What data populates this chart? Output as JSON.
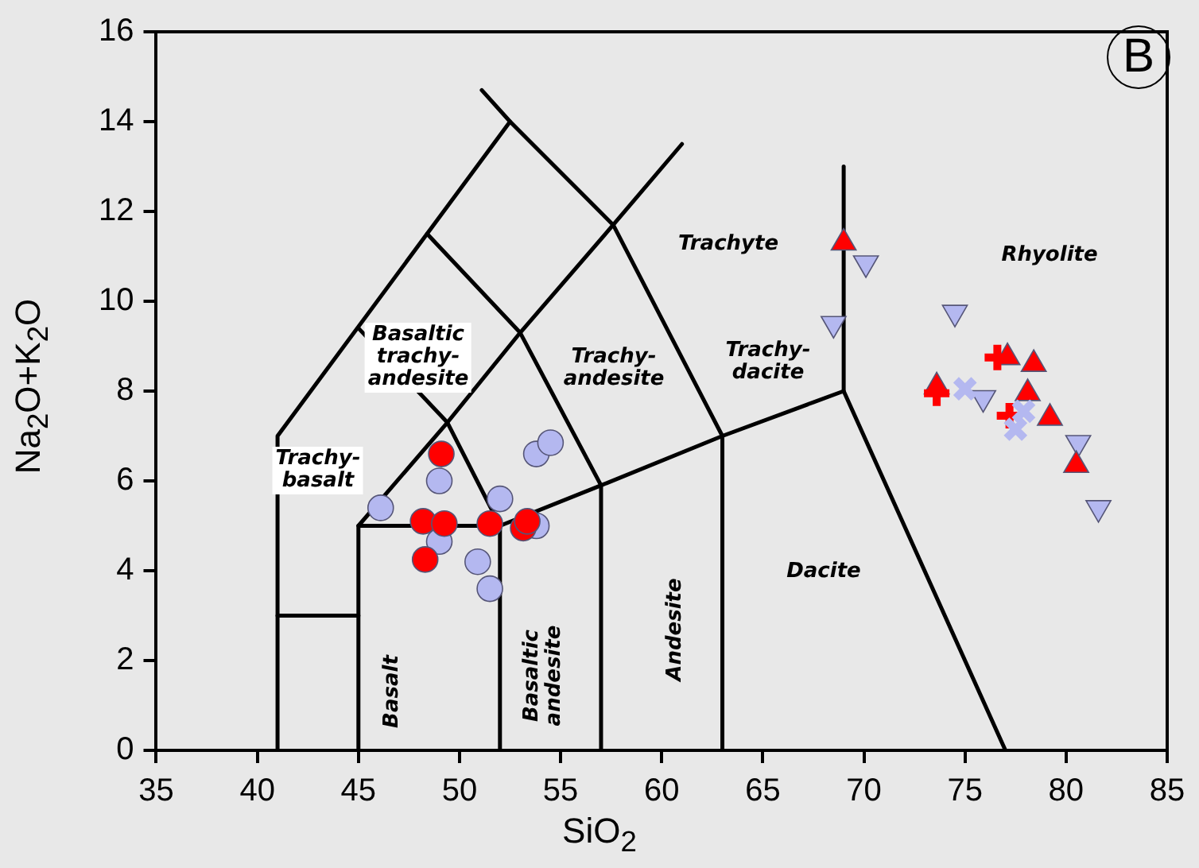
{
  "chart_data": {
    "type": "scatter",
    "xlabel": "SiO$_{2}$",
    "ylabel": "Na$_{2}$O+K$_{2}$O",
    "xlim": [
      35,
      85
    ],
    "ylim": [
      0,
      16
    ],
    "xticks": [
      35,
      40,
      45,
      50,
      55,
      60,
      65,
      70,
      75,
      80,
      85
    ],
    "yticks": [
      0,
      2,
      4,
      6,
      8,
      10,
      12,
      14,
      16
    ],
    "grid": false,
    "legend": false,
    "annotations": [
      "B",
      "Trachyte",
      "Rhyolite",
      "Trachy-dacite",
      "Trachy-andesite",
      "Basaltic trachy-andesite",
      "Trachy-basalt",
      "Basalt",
      "Basaltic andesite",
      "Andesite",
      "Dacite"
    ],
    "series": [
      {
        "type": "line",
        "color": "#000000",
        "x": [
          41,
          41,
          52.5
        ],
        "values": [
          0,
          7,
          14
        ]
      },
      {
        "type": "line",
        "color": "#000000",
        "x": [
          51.1,
          52.5,
          57.6,
          63,
          63
        ],
        "values": [
          14.7,
          14,
          11.7,
          7,
          0
        ]
      },
      {
        "type": "line",
        "color": "#000000",
        "x": [
          41,
          45
        ],
        "values": [
          3,
          3
        ]
      },
      {
        "type": "line",
        "color": "#000000",
        "x": [
          45,
          45,
          52,
          52
        ],
        "values": [
          0,
          5,
          5,
          0
        ]
      },
      {
        "type": "line",
        "color": "#000000",
        "x": [
          45,
          49.4,
          53,
          57.6,
          61
        ],
        "values": [
          5,
          7.3,
          9.3,
          11.7,
          13.5
        ]
      },
      {
        "type": "line",
        "color": "#000000",
        "x": [
          52,
          57,
          63,
          69,
          77
        ],
        "values": [
          5,
          5.9,
          7,
          8,
          0
        ]
      },
      {
        "type": "line",
        "color": "#000000",
        "x": [
          57,
          57,
          53,
          48.4
        ],
        "values": [
          0,
          5.9,
          9.3,
          11.5
        ]
      },
      {
        "type": "line",
        "color": "#000000",
        "x": [
          69,
          69
        ],
        "values": [
          8,
          13
        ]
      },
      {
        "type": "line",
        "color": "#000000",
        "x": [
          45,
          49.4,
          52
        ],
        "values": [
          9.4,
          7.3,
          5
        ]
      },
      {
        "color": "#b4b8f0",
        "marker": "circle",
        "x": [
          46.1,
          49.0,
          49.0,
          52.0,
          50.9,
          51.5,
          53.8,
          54.5,
          53.8
        ],
        "values": [
          5.4,
          6.0,
          4.65,
          5.6,
          4.2,
          3.6,
          6.6,
          6.85,
          5.0
        ]
      },
      {
        "color": "#ff0000",
        "marker": "circle",
        "x": [
          49.1,
          48.2,
          49.25,
          48.3,
          51.5,
          53.15,
          53.35
        ],
        "values": [
          6.6,
          5.1,
          5.05,
          4.25,
          5.05,
          4.95,
          5.1
        ]
      },
      {
        "color": "#b4b8f0",
        "marker": "triangle-down",
        "x": [
          70.1,
          68.5,
          74.5,
          75.9,
          80.6,
          81.6
        ],
        "values": [
          10.85,
          9.5,
          9.75,
          7.85,
          6.85,
          5.4
        ]
      },
      {
        "color": "#ff0000",
        "marker": "triangle",
        "x": [
          69.0,
          77.1,
          78.4,
          78.1,
          79.2,
          80.5,
          73.6
        ],
        "values": [
          11.3,
          8.75,
          8.6,
          7.95,
          7.4,
          6.35,
          8.1
        ]
      },
      {
        "color": "#ff0000",
        "marker": "cross",
        "x": [
          73.6,
          76.6,
          77.2
        ],
        "values": [
          7.95,
          8.75,
          7.45
        ]
      },
      {
        "color": "#b4b8f0",
        "marker": "x",
        "x": [
          75.0,
          77.5,
          77.9
        ],
        "values": [
          8.05,
          7.15,
          7.55
        ]
      }
    ]
  }
}
